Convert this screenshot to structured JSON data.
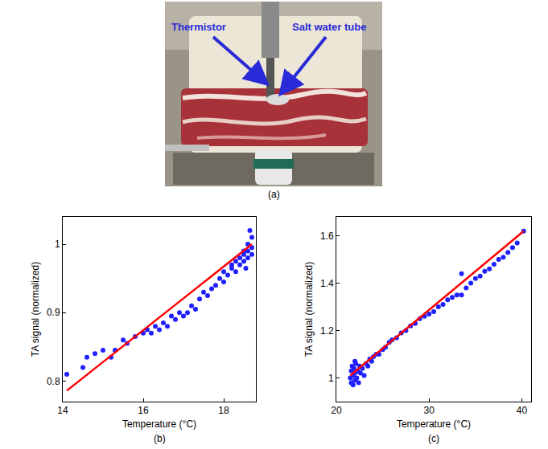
{
  "photo": {
    "panel": "(a)",
    "labels": [
      "Thermistor",
      "Salt water tube"
    ]
  },
  "chart_data": [
    {
      "type": "scatter",
      "panel": "(b)",
      "x_label": "Temperature (°C)",
      "y_label": "TA signal (normalized)",
      "xlim": [
        14,
        18.8
      ],
      "xticks": [
        14,
        16,
        18
      ],
      "ylim": [
        0.77,
        1.04
      ],
      "yticks": [
        0.8,
        0.9,
        1
      ],
      "grid": false,
      "series": [
        {
          "type": "scatter",
          "marker": "circle",
          "color": "#1f1fff",
          "x": [
            14.1,
            14.5,
            14.6,
            14.8,
            15.0,
            15.2,
            15.3,
            15.5,
            15.6,
            15.8,
            16.0,
            16.1,
            16.2,
            16.3,
            16.4,
            16.5,
            16.6,
            16.7,
            16.8,
            16.9,
            17.0,
            17.1,
            17.2,
            17.3,
            17.4,
            17.5,
            17.6,
            17.7,
            17.8,
            17.9,
            18.0,
            18.0,
            18.1,
            18.2,
            18.2,
            18.3,
            18.3,
            18.4,
            18.4,
            18.5,
            18.5,
            18.5,
            18.6,
            18.6,
            18.6,
            18.7,
            18.7,
            18.65,
            18.7,
            18.55
          ],
          "values": [
            0.81,
            0.82,
            0.835,
            0.84,
            0.845,
            0.835,
            0.845,
            0.86,
            0.855,
            0.865,
            0.87,
            0.875,
            0.87,
            0.88,
            0.875,
            0.885,
            0.88,
            0.895,
            0.89,
            0.9,
            0.895,
            0.9,
            0.91,
            0.905,
            0.92,
            0.93,
            0.925,
            0.935,
            0.94,
            0.95,
            0.945,
            0.96,
            0.955,
            0.965,
            0.97,
            0.96,
            0.975,
            0.98,
            0.97,
            0.99,
            0.975,
            0.985,
            1.0,
            0.98,
            0.99,
            1.01,
            0.995,
            1.02,
            0.985,
            0.965
          ]
        },
        {
          "type": "line",
          "line_style": "solid",
          "color": "#ff0000",
          "x": [
            14.1,
            18.7
          ],
          "values": [
            0.786,
            1.0
          ]
        }
      ]
    },
    {
      "type": "scatter",
      "panel": "(c)",
      "x_label": "Temperature (°C)",
      "y_label": "TA signal (normalized)",
      "xlim": [
        20,
        41
      ],
      "xticks": [
        20,
        30,
        40
      ],
      "ylim": [
        0.9,
        1.68
      ],
      "yticks": [
        1,
        1.2,
        1.4,
        1.6
      ],
      "grid": false,
      "series": [
        {
          "type": "scatter",
          "marker": "circle",
          "color": "#1f1fff",
          "x": [
            21.5,
            21.6,
            21.6,
            21.7,
            21.8,
            21.8,
            21.9,
            22.0,
            22.0,
            22.1,
            22.2,
            22.3,
            22.4,
            22.5,
            22.6,
            22.8,
            23.0,
            23.2,
            23.4,
            23.6,
            23.8,
            24.0,
            24.3,
            24.6,
            25.0,
            25.3,
            25.7,
            26.0,
            26.5,
            27.0,
            27.5,
            28.0,
            28.5,
            29.0,
            29.5,
            30.0,
            30.5,
            31.0,
            31.5,
            32.0,
            32.5,
            33.0,
            33.5,
            34.0,
            34.5,
            35.0,
            35.5,
            36.0,
            36.5,
            37.0,
            37.5,
            38.0,
            38.5,
            39.0,
            39.5,
            40.2,
            33.5,
            22.0
          ],
          "values": [
            1.0,
            0.98,
            1.03,
            1.05,
            0.97,
            1.01,
            1.04,
            0.99,
            1.02,
            1.06,
            1.0,
            1.03,
            0.98,
            1.05,
            1.02,
            1.04,
            1.01,
            1.06,
            1.05,
            1.08,
            1.07,
            1.09,
            1.1,
            1.1,
            1.12,
            1.13,
            1.15,
            1.16,
            1.17,
            1.19,
            1.2,
            1.22,
            1.23,
            1.25,
            1.26,
            1.27,
            1.28,
            1.3,
            1.31,
            1.33,
            1.34,
            1.35,
            1.35,
            1.38,
            1.4,
            1.42,
            1.43,
            1.45,
            1.46,
            1.48,
            1.5,
            1.51,
            1.53,
            1.55,
            1.57,
            1.62,
            1.44,
            1.07
          ]
        },
        {
          "type": "line",
          "line_style": "solid",
          "color": "#ff0000",
          "x": [
            21.5,
            40.2
          ],
          "values": [
            1.01,
            1.62
          ]
        }
      ]
    }
  ]
}
